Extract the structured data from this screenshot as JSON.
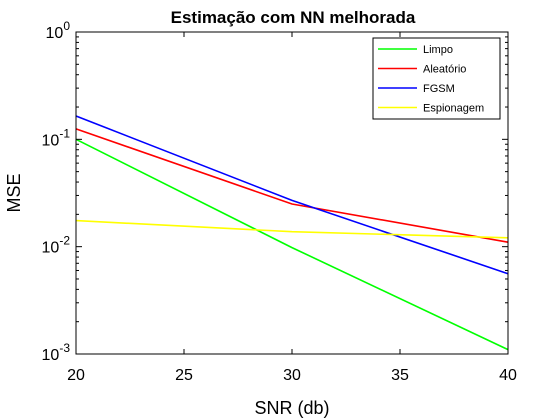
{
  "chart_data": {
    "type": "line",
    "title": "Estimação com NN melhorada",
    "xlabel": "SNR (db)",
    "ylabel": "MSE",
    "yscale": "log",
    "xlim": [
      20,
      40
    ],
    "ylim": [
      0.001,
      1
    ],
    "x_ticks": [
      "20",
      "25",
      "30",
      "35",
      "40"
    ],
    "y_ticks": [
      {
        "base": "10",
        "exp": "-3"
      },
      {
        "base": "10",
        "exp": "-2"
      },
      {
        "base": "10",
        "exp": "-1"
      },
      {
        "base": "10",
        "exp": "0"
      }
    ],
    "grid": false,
    "legend_position": "top-right",
    "x": [
      20,
      30,
      40
    ],
    "series": [
      {
        "name": "Limpo",
        "color": "#00ff00",
        "values": [
          0.1,
          0.0098,
          0.0011
        ]
      },
      {
        "name": "Aleatório",
        "color": "#ff0000",
        "values": [
          0.125,
          0.025,
          0.011
        ]
      },
      {
        "name": "FGSM",
        "color": "#0000ff",
        "values": [
          0.165,
          0.027,
          0.0056
        ]
      },
      {
        "name": "Espionagem",
        "color": "#ffff00",
        "values": [
          0.0175,
          0.0138,
          0.0121
        ]
      }
    ]
  }
}
